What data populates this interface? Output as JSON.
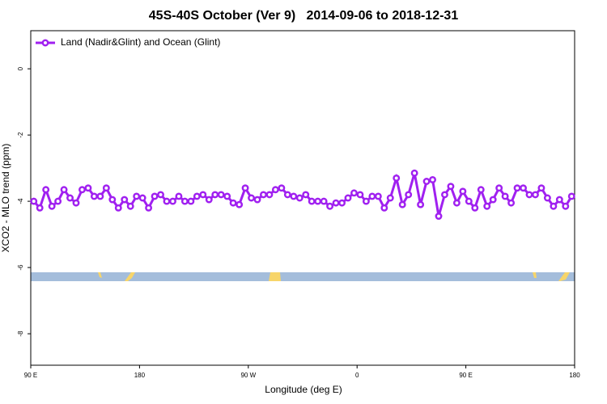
{
  "chart_data": {
    "type": "line",
    "title": "45S-40S October (Ver 9)   2014-09-06 to 2018-12-31",
    "x_label": "Longitude (deg E)",
    "y_label": "XCO2 - MLO trend (ppm)",
    "xlim": [
      90,
      540
    ],
    "ylim": [
      -8.95,
      1.15
    ],
    "xticks": [
      {
        "value": 90,
        "label": "90 E"
      },
      180,
      {
        "value": 270,
        "label": "90 W"
      },
      {
        "value": 360,
        "label": "0"
      },
      {
        "value": 450,
        "label": "90 E"
      },
      {
        "value": 540,
        "label": "180"
      }
    ],
    "yticks": [
      0,
      -2,
      -4,
      -6,
      -8
    ],
    "grid": false,
    "legend": "top-left",
    "x": [
      92.5,
      97.5,
      102.5,
      107.5,
      112.5,
      117.5,
      122.5,
      127.5,
      132.5,
      137.5,
      142.5,
      147.5,
      152.5,
      157.5,
      162.5,
      167.5,
      172.5,
      177.5,
      182.5,
      187.5,
      192.5,
      197.5,
      202.5,
      207.5,
      212.5,
      217.5,
      222.5,
      227.5,
      232.5,
      237.5,
      242.5,
      247.5,
      252.5,
      257.5,
      262.5,
      267.5,
      272.5,
      277.5,
      282.5,
      287.5,
      292.5,
      297.5,
      302.5,
      307.5,
      312.5,
      317.5,
      322.5,
      327.5,
      332.5,
      337.5,
      342.5,
      347.5,
      352.5,
      357.5,
      362.5,
      367.5,
      372.5,
      377.5,
      382.5,
      387.5,
      392.5,
      397.5,
      402.5,
      407.5,
      412.5,
      417.5,
      422.5,
      427.5,
      432.5,
      437.5,
      442.5,
      447.5,
      452.5,
      457.5,
      462.5,
      467.5,
      472.5,
      477.5,
      482.5,
      487.5,
      492.5,
      497.5,
      502.5,
      507.5,
      512.5,
      517.5,
      522.5,
      527.5,
      532.5,
      537.5
    ],
    "series": [
      {
        "name": "Land (Nadir&Glint) and Ocean (Glint)",
        "color": "#a020f0",
        "values": [
          -4.0,
          -4.2,
          -3.65,
          -4.15,
          -4.0,
          -3.65,
          -3.9,
          -4.05,
          -3.65,
          -3.6,
          -3.85,
          -3.85,
          -3.6,
          -3.95,
          -4.2,
          -3.95,
          -4.15,
          -3.85,
          -3.9,
          -4.2,
          -3.85,
          -3.8,
          -4.0,
          -4.0,
          -3.85,
          -4.0,
          -4.0,
          -3.85,
          -3.8,
          -3.95,
          -3.8,
          -3.8,
          -3.85,
          -4.05,
          -4.1,
          -3.6,
          -3.9,
          -3.95,
          -3.8,
          -3.8,
          -3.65,
          -3.6,
          -3.8,
          -3.85,
          -3.9,
          -3.8,
          -4.0,
          -4.0,
          -4.0,
          -4.15,
          -4.05,
          -4.05,
          -3.9,
          -3.75,
          -3.8,
          -4.0,
          -3.85,
          -3.85,
          -4.2,
          -3.9,
          -3.3,
          -4.1,
          -3.8,
          -3.15,
          -4.1,
          -3.4,
          -3.35,
          -4.45,
          -3.8,
          -3.55,
          -4.05,
          -3.7,
          -4.0,
          -4.2,
          -3.65,
          -4.15,
          -3.95,
          -3.6,
          -3.85,
          -4.05,
          -3.6,
          -3.6,
          -3.8,
          -3.8,
          -3.6,
          -3.9,
          -4.15,
          -3.95,
          -4.15,
          -3.85
        ]
      }
    ]
  }
}
